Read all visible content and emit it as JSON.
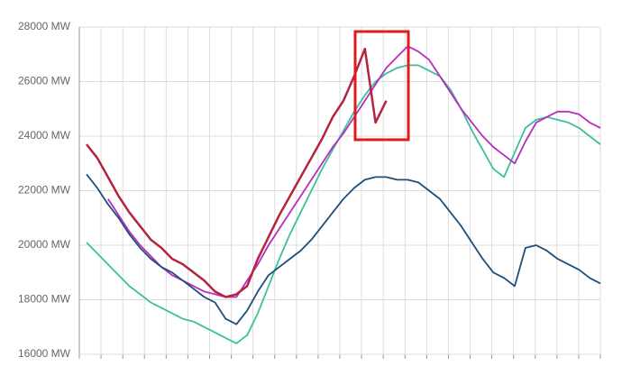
{
  "chart_data": {
    "type": "line",
    "ylim": [
      16000,
      28000
    ],
    "yticks": [
      {
        "value": 16000,
        "label": "16000 MW"
      },
      {
        "value": 18000,
        "label": "18000 MW"
      },
      {
        "value": 20000,
        "label": "20000 MW"
      },
      {
        "value": 22000,
        "label": "22000 MW"
      },
      {
        "value": 24000,
        "label": "24000 MW"
      },
      {
        "value": 26000,
        "label": "26000 MW"
      },
      {
        "value": 28000,
        "label": "28000 MW"
      }
    ],
    "grid": true,
    "series": [
      {
        "color": "#3cc19a",
        "values": [
          20100,
          19700,
          19300,
          18900,
          18500,
          18200,
          17900,
          17700,
          17500,
          17300,
          17200,
          17000,
          16800,
          16600,
          16400,
          16700,
          17500,
          18500,
          19500,
          20400,
          21200,
          22000,
          22800,
          23500,
          24200,
          24900,
          25500,
          26000,
          26300,
          26500,
          26600,
          26600,
          26400,
          26200,
          25700,
          25000,
          24200,
          23500,
          22800,
          22500,
          23400,
          24300,
          24600,
          24700,
          24600,
          24500,
          24300,
          24000,
          23700
        ]
      },
      {
        "color": "#b82cbf",
        "values": [
          null,
          null,
          21700,
          21100,
          20500,
          20000,
          19600,
          19200,
          18900,
          18700,
          18500,
          18300,
          18200,
          18100,
          18100,
          18700,
          19300,
          20000,
          20600,
          21200,
          21800,
          22400,
          23000,
          23600,
          24100,
          24700,
          25300,
          25900,
          26500,
          26900,
          27300,
          27100,
          26800,
          26200,
          25600,
          25000,
          24500,
          24000,
          23600,
          23300,
          23000,
          23800,
          24500,
          24700,
          24900,
          24900,
          24800,
          24500,
          24300
        ]
      },
      {
        "color": "#1f4e79",
        "values": [
          22600,
          22100,
          21500,
          21000,
          20400,
          19900,
          19500,
          19200,
          19000,
          18700,
          18400,
          18100,
          17900,
          17300,
          17100,
          17600,
          18300,
          18900,
          19200,
          19500,
          19800,
          20200,
          20700,
          21200,
          21700,
          22100,
          22400,
          22500,
          22500,
          22400,
          22400,
          22300,
          22000,
          21700,
          21200,
          20700,
          20100,
          19500,
          19000,
          18800,
          18500,
          19900,
          20000,
          19800,
          19500,
          19300,
          19100,
          18800,
          18600
        ]
      },
      {
        "color": "#b5243f",
        "values": [
          23700,
          23200,
          22500,
          21800,
          21200,
          20700,
          20200,
          19900,
          19500,
          19300,
          19000,
          18700,
          18300,
          18100,
          18200,
          18500,
          19500,
          20300,
          21100,
          21800,
          22500,
          23200,
          23900,
          24700,
          25300,
          26200,
          27200,
          24500,
          25300,
          null,
          null,
          null,
          null,
          null,
          null,
          null,
          null,
          null,
          null,
          null,
          null,
          null,
          null,
          null,
          null,
          null,
          null,
          null,
          null
        ]
      }
    ]
  }
}
